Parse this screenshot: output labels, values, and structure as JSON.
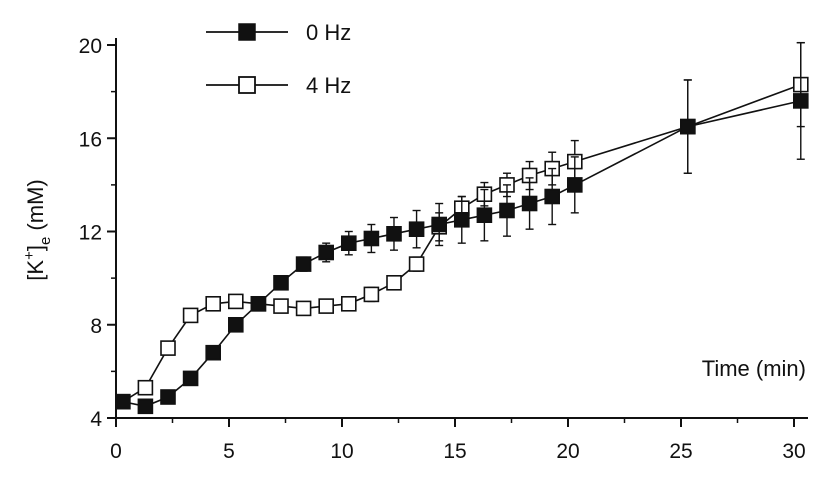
{
  "chart_data": {
    "type": "line",
    "xlabel": "Time (min)",
    "ylabel_main": "[K",
    "ylabel_sup": "+",
    "ylabel_close": "]",
    "ylabel_sub": "e",
    "ylabel_unit": " (mM)",
    "xlim": [
      0,
      30
    ],
    "ylim": [
      4,
      20
    ],
    "xticks": [
      0,
      5,
      10,
      15,
      20,
      25,
      30
    ],
    "yticks": [
      4,
      8,
      12,
      16,
      20
    ],
    "grid": false,
    "legend_position": "top-left",
    "series": [
      {
        "name": "0 Hz",
        "marker": "filled-square",
        "x": [
          0.3,
          1.3,
          2.3,
          3.3,
          4.3,
          5.3,
          6.3,
          7.3,
          8.3,
          9.3,
          10.3,
          11.3,
          12.3,
          13.3,
          14.3,
          15.3,
          16.3,
          17.3,
          18.3,
          19.3,
          20.3,
          25.3,
          30.3
        ],
        "y": [
          4.7,
          4.5,
          4.9,
          5.7,
          6.8,
          8.0,
          8.9,
          9.8,
          10.6,
          11.1,
          11.5,
          11.7,
          11.9,
          12.1,
          12.3,
          12.5,
          12.7,
          12.9,
          13.2,
          13.5,
          14.0,
          16.5,
          17.6
        ],
        "err": [
          0.15,
          0.15,
          0.15,
          0.2,
          0.25,
          0.3,
          0.3,
          0.3,
          0.3,
          0.4,
          0.5,
          0.6,
          0.7,
          0.8,
          0.9,
          1.0,
          1.1,
          1.1,
          1.1,
          1.2,
          1.2,
          2.0,
          2.5
        ]
      },
      {
        "name": "4 Hz",
        "marker": "open-square",
        "x": [
          0.3,
          1.3,
          2.3,
          3.3,
          4.3,
          5.3,
          6.3,
          7.3,
          8.3,
          9.3,
          10.3,
          11.3,
          12.3,
          13.3,
          14.3,
          15.3,
          16.3,
          17.3,
          18.3,
          19.3,
          20.3,
          25.3,
          30.3
        ],
        "y": [
          4.7,
          5.3,
          7.0,
          8.4,
          8.9,
          9.0,
          8.9,
          8.8,
          8.7,
          8.8,
          8.9,
          9.3,
          9.8,
          10.6,
          12.2,
          13.0,
          13.6,
          14.0,
          14.4,
          14.7,
          15.0,
          16.5,
          18.3
        ],
        "err": [
          0.15,
          0.15,
          0.2,
          0.2,
          0.2,
          0.25,
          0.2,
          0.25,
          0.2,
          0.25,
          0.25,
          0.3,
          0.3,
          0.3,
          0.6,
          0.5,
          0.5,
          0.5,
          0.6,
          0.7,
          0.9,
          2.0,
          1.8
        ]
      }
    ]
  }
}
